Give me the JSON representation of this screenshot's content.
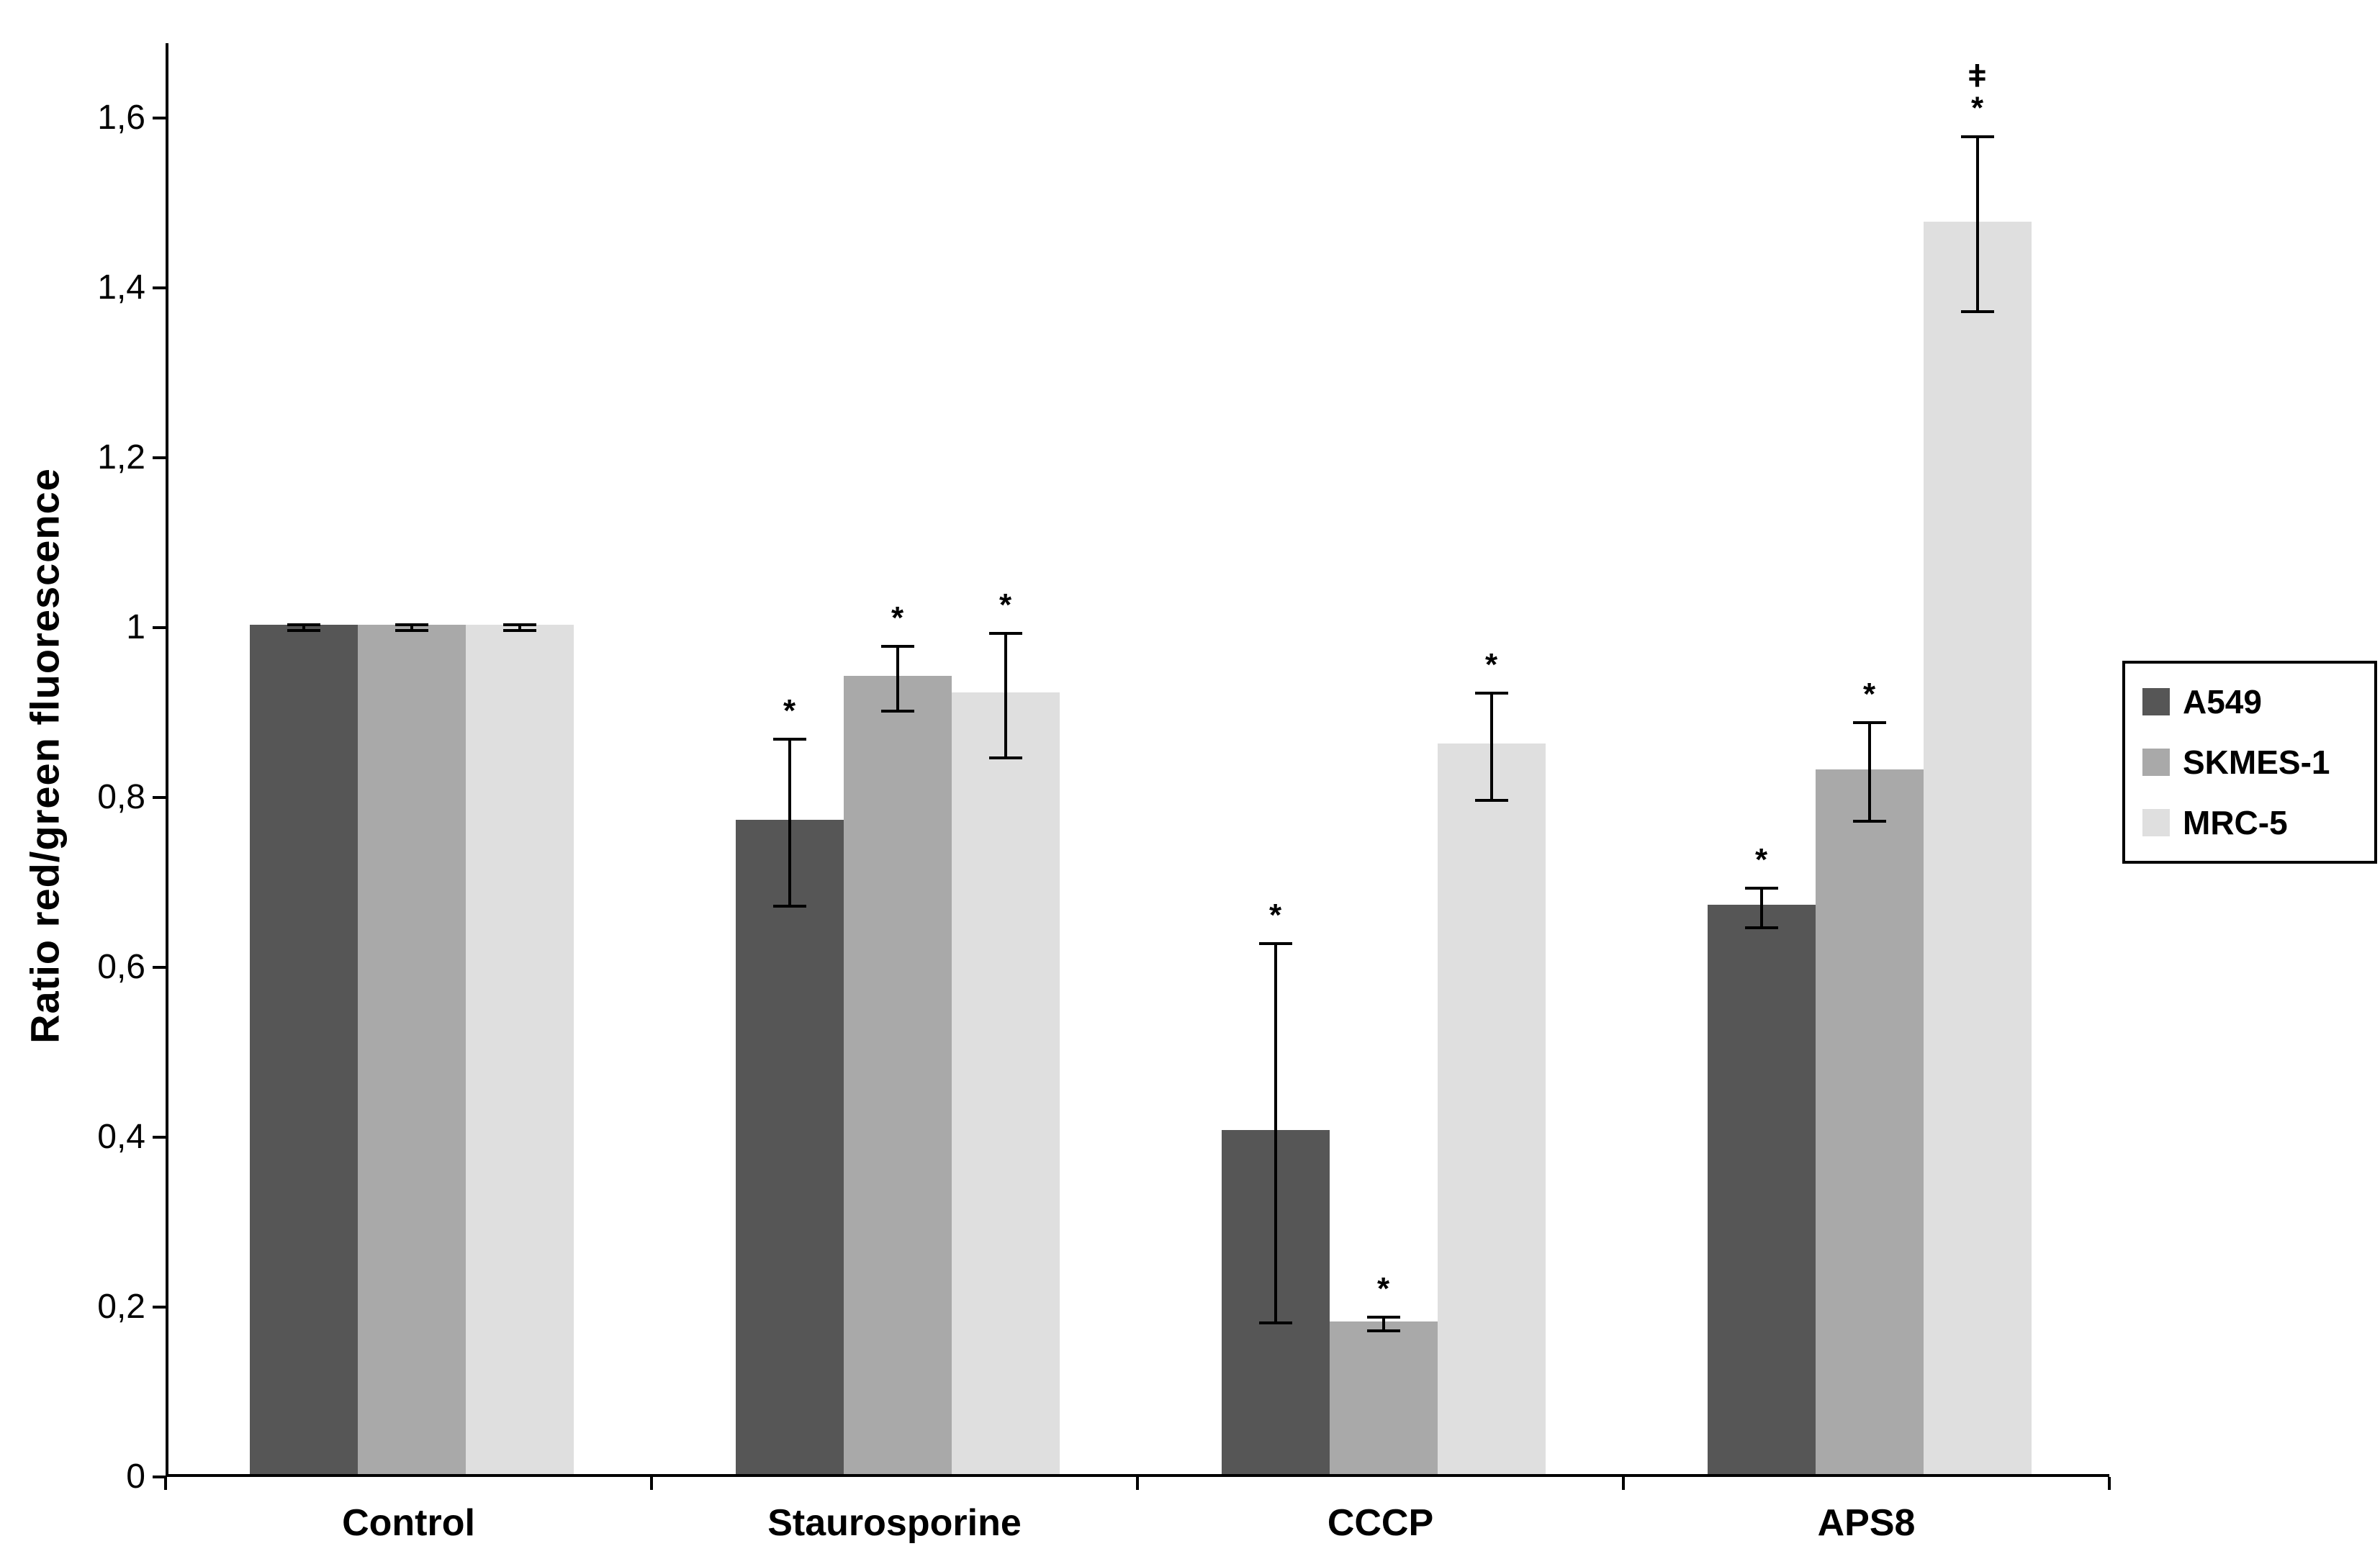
{
  "figure": {
    "background": "#ffffff",
    "axis_color": "#000000"
  },
  "chart_data": {
    "type": "bar",
    "title": "",
    "xlabel": "",
    "ylabel": "Ratio red/green fluorescence",
    "ylim": [
      0,
      1.6
    ],
    "grid": false,
    "legend_position": "right",
    "yticks": [
      0,
      0.2,
      0.4,
      0.6,
      0.8,
      1,
      1.2,
      1.4,
      1.6
    ],
    "ytick_labels": [
      "0",
      "0,2",
      "0,4",
      "0,6",
      "0,8",
      "1",
      "1,2",
      "1,4",
      "1,6"
    ],
    "categories": [
      "Control",
      "Staurosporine",
      "CCCP",
      "APS8"
    ],
    "series": [
      {
        "name": "A549",
        "color": "#565656",
        "values": [
          1.0,
          0.77,
          0.405,
          0.67
        ],
        "errors": [
          0.005,
          0.1,
          0.225,
          0.025
        ],
        "annotations": [
          "",
          "*",
          "*",
          "*"
        ]
      },
      {
        "name": "SKMES-1",
        "color": "#a9a9a9",
        "values": [
          1.0,
          0.94,
          0.18,
          0.83
        ],
        "errors": [
          0.005,
          0.04,
          0.01,
          0.06
        ],
        "annotations": [
          "",
          "*",
          "*",
          "*"
        ]
      },
      {
        "name": "MRC-5",
        "color": "#dfdfdf",
        "values": [
          1.0,
          0.92,
          0.86,
          1.475
        ],
        "errors": [
          0.005,
          0.075,
          0.065,
          0.105
        ],
        "annotations": [
          "",
          "*",
          "*",
          "ǂ\n*"
        ]
      }
    ],
    "annotation_symbols": {
      "significant": "*",
      "dagger": "ǂ"
    }
  }
}
